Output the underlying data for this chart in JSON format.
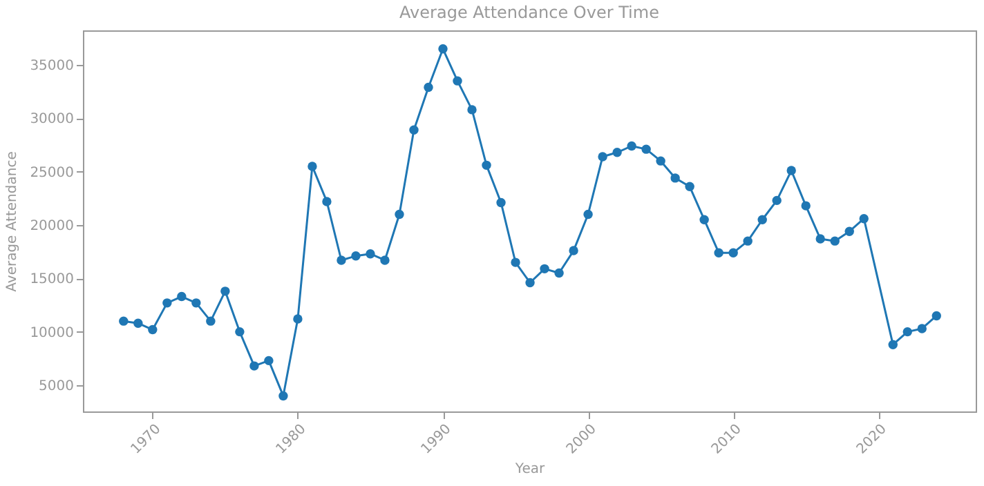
{
  "chart_data": {
    "type": "line",
    "title": "Average Attendance Over Time",
    "xlabel": "Year",
    "ylabel": "Average Attendance",
    "x": [
      1968,
      1969,
      1970,
      1971,
      1972,
      1973,
      1974,
      1975,
      1976,
      1977,
      1978,
      1979,
      1980,
      1981,
      1982,
      1983,
      1984,
      1985,
      1986,
      1987,
      1988,
      1989,
      1990,
      1991,
      1992,
      1993,
      1994,
      1995,
      1996,
      1997,
      1998,
      1999,
      2000,
      2001,
      2002,
      2003,
      2004,
      2005,
      2006,
      2007,
      2008,
      2009,
      2010,
      2011,
      2012,
      2013,
      2014,
      2015,
      2016,
      2017,
      2018,
      2019,
      2021,
      2022,
      2023,
      2024
    ],
    "values": [
      11000,
      10800,
      10200,
      12700,
      13300,
      12700,
      11000,
      13800,
      10000,
      6800,
      7300,
      4000,
      11200,
      25500,
      22200,
      16700,
      17100,
      17300,
      16700,
      21000,
      28900,
      32900,
      36500,
      33500,
      30800,
      25600,
      22100,
      16500,
      14600,
      15900,
      15500,
      17600,
      21000,
      26400,
      26800,
      27400,
      27100,
      26000,
      24400,
      23600,
      20500,
      17400,
      17400,
      18500,
      20500,
      22300,
      25100,
      21800,
      18700,
      18500,
      19400,
      20600,
      8800,
      10000,
      10300,
      11500
    ],
    "color": "#1f77b4",
    "marker": "circle",
    "line_style": "solid",
    "grid": false,
    "xlim": [
      1965.2,
      2026.7
    ],
    "xticks": [
      1970,
      1980,
      1990,
      2000,
      2010,
      2020
    ],
    "ylim": [
      2540,
      38230
    ],
    "yticks": [
      5000,
      10000,
      15000,
      20000,
      25000,
      30000,
      35000
    ]
  }
}
